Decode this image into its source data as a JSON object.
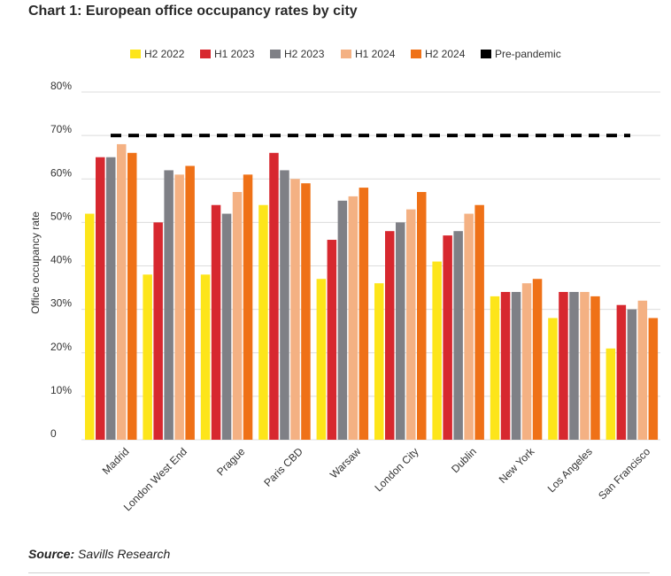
{
  "chart_data": {
    "type": "bar",
    "title": "Chart 1: European office occupancy rates by city",
    "ylabel": "Office occupancy rate",
    "xlabel": "",
    "ylim": [
      0,
      80
    ],
    "yticks": [
      "0",
      "10%",
      "20%",
      "30%",
      "40%",
      "50%",
      "60%",
      "70%",
      "80%"
    ],
    "grid": true,
    "legend_position": "top",
    "categories": [
      "Madrid",
      "London West End",
      "Prague",
      "Paris CBD",
      "Warsaw",
      "London City",
      "Dublin",
      "New York",
      "Los Angeles",
      "San Francisco"
    ],
    "series": [
      {
        "name": "H2 2022",
        "color": "#fde51a",
        "values": [
          52,
          38,
          38,
          54,
          37,
          36,
          41,
          33,
          28,
          21
        ]
      },
      {
        "name": "H1 2023",
        "color": "#d7282f",
        "values": [
          65,
          50,
          54,
          66,
          46,
          48,
          47,
          34,
          34,
          31
        ]
      },
      {
        "name": "H2 2023",
        "color": "#7f8086",
        "values": [
          65,
          62,
          52,
          62,
          55,
          50,
          48,
          34,
          34,
          30
        ]
      },
      {
        "name": "H1 2024",
        "color": "#f4b183",
        "values": [
          68,
          61,
          57,
          60,
          56,
          53,
          52,
          36,
          34,
          32
        ]
      },
      {
        "name": "H2 2024",
        "color": "#ef7117",
        "values": [
          66,
          63,
          61,
          59,
          58,
          57,
          54,
          37,
          33,
          28
        ]
      }
    ],
    "reference_line": {
      "name": "Pre-pandemic",
      "value": 70,
      "color": "#000000"
    },
    "source_label": "Source:",
    "source_text": "Savills Research"
  }
}
